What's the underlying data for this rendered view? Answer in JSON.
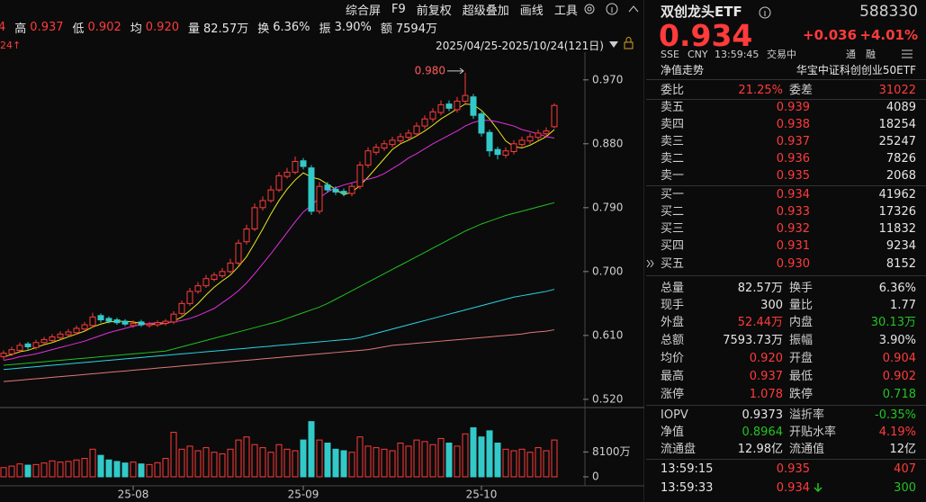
{
  "toolbar": [
    "综合屏",
    "F9",
    "前复权",
    "超级叠加",
    "画线",
    "工具"
  ],
  "info_bar": {
    "lead": "4",
    "items": [
      {
        "label": "高",
        "value": "0.937"
      },
      {
        "label": "低",
        "value": "0.902"
      },
      {
        "label": "均",
        "value": "0.920"
      },
      {
        "label": "量",
        "value": "82.57万"
      },
      {
        "label": "换",
        "value": "6.36%"
      },
      {
        "label": "振",
        "value": "3.90%"
      },
      {
        "label": "额",
        "value": "7594万"
      }
    ]
  },
  "period_badge": "24↑",
  "range": "2025/04/25-2025/10/24(121日)",
  "chart_data": [
    {
      "type": "candlestick",
      "up_color": "#ff3b3b",
      "down_color": "#33c9c9",
      "ylim": [
        0.511,
        1.009
      ],
      "yticks": [
        {
          "value": 0.97,
          "label": "0.970"
        },
        {
          "value": 0.88,
          "label": "0.880"
        },
        {
          "value": 0.79,
          "label": "0.790"
        },
        {
          "value": 0.7,
          "label": "0.700"
        },
        {
          "value": 0.61,
          "label": "0.610"
        },
        {
          "value": 0.52,
          "label": "0.520"
        }
      ],
      "annotation": "0.980",
      "open": [
        0.58,
        0.584,
        0.589,
        0.598,
        0.593,
        0.6,
        0.603,
        0.607,
        0.611,
        0.614,
        0.619,
        0.624,
        0.638,
        0.634,
        0.632,
        0.63,
        0.624,
        0.629,
        0.624,
        0.625,
        0.627,
        0.629,
        0.641,
        0.655,
        0.672,
        0.68,
        0.689,
        0.694,
        0.7,
        0.712,
        0.742,
        0.76,
        0.79,
        0.8,
        0.815,
        0.834,
        0.84,
        0.856,
        0.846,
        0.785,
        0.822,
        0.816,
        0.813,
        0.81,
        0.82,
        0.85,
        0.868,
        0.874,
        0.879,
        0.884,
        0.889,
        0.894,
        0.905,
        0.915,
        0.924,
        0.936,
        0.928,
        0.94,
        0.946,
        0.922,
        0.896,
        0.872,
        0.864,
        0.869,
        0.879,
        0.884,
        0.889,
        0.894,
        0.904
      ],
      "high": [
        0.589,
        0.594,
        0.6,
        0.601,
        0.604,
        0.608,
        0.612,
        0.616,
        0.619,
        0.624,
        0.629,
        0.642,
        0.641,
        0.637,
        0.635,
        0.633,
        0.631,
        0.632,
        0.629,
        0.631,
        0.633,
        0.644,
        0.659,
        0.677,
        0.685,
        0.695,
        0.699,
        0.705,
        0.718,
        0.745,
        0.766,
        0.796,
        0.806,
        0.821,
        0.84,
        0.846,
        0.862,
        0.86,
        0.85,
        0.826,
        0.826,
        0.82,
        0.817,
        0.824,
        0.855,
        0.875,
        0.88,
        0.885,
        0.89,
        0.895,
        0.9,
        0.91,
        0.92,
        0.93,
        0.941,
        0.941,
        0.946,
        0.98,
        0.95,
        0.925,
        0.9,
        0.876,
        0.875,
        0.885,
        0.89,
        0.895,
        0.9,
        0.903,
        0.937
      ],
      "low": [
        0.576,
        0.581,
        0.586,
        0.59,
        0.59,
        0.597,
        0.6,
        0.604,
        0.608,
        0.611,
        0.616,
        0.621,
        0.628,
        0.627,
        0.625,
        0.623,
        0.621,
        0.622,
        0.621,
        0.622,
        0.624,
        0.626,
        0.638,
        0.652,
        0.669,
        0.677,
        0.686,
        0.691,
        0.697,
        0.709,
        0.738,
        0.757,
        0.786,
        0.797,
        0.812,
        0.831,
        0.837,
        0.844,
        0.78,
        0.781,
        0.811,
        0.808,
        0.806,
        0.806,
        0.816,
        0.846,
        0.864,
        0.87,
        0.875,
        0.88,
        0.885,
        0.89,
        0.901,
        0.911,
        0.92,
        0.926,
        0.924,
        0.936,
        0.915,
        0.89,
        0.862,
        0.858,
        0.86,
        0.865,
        0.875,
        0.88,
        0.885,
        0.89,
        0.902
      ],
      "close": [
        0.585,
        0.59,
        0.596,
        0.594,
        0.6,
        0.604,
        0.608,
        0.612,
        0.615,
        0.62,
        0.625,
        0.636,
        0.632,
        0.63,
        0.628,
        0.626,
        0.627,
        0.625,
        0.626,
        0.628,
        0.63,
        0.64,
        0.655,
        0.672,
        0.68,
        0.69,
        0.695,
        0.7,
        0.712,
        0.74,
        0.76,
        0.79,
        0.8,
        0.815,
        0.835,
        0.84,
        0.855,
        0.848,
        0.785,
        0.82,
        0.815,
        0.812,
        0.81,
        0.82,
        0.85,
        0.87,
        0.875,
        0.88,
        0.885,
        0.89,
        0.895,
        0.905,
        0.915,
        0.925,
        0.935,
        0.93,
        0.94,
        0.948,
        0.92,
        0.895,
        0.87,
        0.865,
        0.87,
        0.88,
        0.885,
        0.89,
        0.895,
        0.898,
        0.934
      ],
      "series": [
        {
          "color": "#e8e820",
          "values": [
            0.58,
            0.583,
            0.587,
            0.589,
            0.593,
            0.597,
            0.6,
            0.604,
            0.608,
            0.612,
            0.616,
            0.622,
            0.626,
            0.629,
            0.63,
            0.63,
            0.629,
            0.627,
            0.626,
            0.626,
            0.627,
            0.63,
            0.636,
            0.645,
            0.655,
            0.667,
            0.678,
            0.687,
            0.695,
            0.707,
            0.721,
            0.74,
            0.76,
            0.781,
            0.8,
            0.816,
            0.829,
            0.839,
            0.833,
            0.83,
            0.823,
            0.816,
            0.808,
            0.812,
            0.821,
            0.833,
            0.846,
            0.859,
            0.872,
            0.88,
            0.885,
            0.891,
            0.898,
            0.906,
            0.915,
            0.922,
            0.929,
            0.936,
            0.935,
            0.927,
            0.915,
            0.9,
            0.884,
            0.876,
            0.874,
            0.878,
            0.884,
            0.89,
            0.9
          ]
        },
        {
          "color": "#e030e0",
          "values": [
            0.575,
            0.577,
            0.58,
            0.582,
            0.584,
            0.587,
            0.59,
            0.593,
            0.596,
            0.599,
            0.602,
            0.606,
            0.61,
            0.614,
            0.617,
            0.62,
            0.623,
            0.625,
            0.627,
            0.628,
            0.628,
            0.629,
            0.631,
            0.634,
            0.638,
            0.643,
            0.648,
            0.656,
            0.664,
            0.673,
            0.684,
            0.697,
            0.711,
            0.725,
            0.74,
            0.755,
            0.77,
            0.784,
            0.793,
            0.804,
            0.812,
            0.818,
            0.822,
            0.825,
            0.828,
            0.83,
            0.833,
            0.838,
            0.845,
            0.852,
            0.86,
            0.866,
            0.873,
            0.88,
            0.886,
            0.892,
            0.898,
            0.905,
            0.91,
            0.913,
            0.913,
            0.911,
            0.908,
            0.905,
            0.9,
            0.897,
            0.894,
            0.89,
            0.888
          ]
        },
        {
          "color": "#22c022",
          "values": [
            0.568,
            0.569,
            0.57,
            0.571,
            0.572,
            0.573,
            0.574,
            0.575,
            0.576,
            0.577,
            0.578,
            0.579,
            0.58,
            0.581,
            0.582,
            0.583,
            0.584,
            0.585,
            0.586,
            0.587,
            0.588,
            0.591,
            0.594,
            0.597,
            0.6,
            0.603,
            0.606,
            0.609,
            0.612,
            0.615,
            0.618,
            0.621,
            0.624,
            0.627,
            0.63,
            0.634,
            0.638,
            0.642,
            0.646,
            0.65,
            0.655,
            0.661,
            0.667,
            0.673,
            0.679,
            0.685,
            0.691,
            0.697,
            0.703,
            0.709,
            0.715,
            0.721,
            0.727,
            0.733,
            0.739,
            0.745,
            0.751,
            0.757,
            0.762,
            0.767,
            0.771,
            0.775,
            0.779,
            0.782,
            0.785,
            0.788,
            0.791,
            0.794,
            0.797
          ]
        },
        {
          "color": "#2ad4e6",
          "values": [
            0.562,
            0.563,
            0.564,
            0.565,
            0.566,
            0.567,
            0.568,
            0.569,
            0.57,
            0.571,
            0.572,
            0.573,
            0.574,
            0.575,
            0.576,
            0.577,
            0.578,
            0.579,
            0.58,
            0.581,
            0.582,
            0.583,
            0.584,
            0.585,
            0.586,
            0.587,
            0.588,
            0.589,
            0.59,
            0.591,
            0.592,
            0.593,
            0.594,
            0.595,
            0.596,
            0.597,
            0.598,
            0.599,
            0.6,
            0.601,
            0.602,
            0.603,
            0.604,
            0.605,
            0.607,
            0.61,
            0.613,
            0.616,
            0.619,
            0.622,
            0.625,
            0.628,
            0.631,
            0.634,
            0.637,
            0.64,
            0.643,
            0.646,
            0.649,
            0.652,
            0.655,
            0.658,
            0.661,
            0.664,
            0.666,
            0.668,
            0.67,
            0.672,
            0.675
          ]
        },
        {
          "color": "#e27878",
          "values": [
            0.545,
            0.546,
            0.547,
            0.548,
            0.549,
            0.55,
            0.551,
            0.552,
            0.553,
            0.554,
            0.555,
            0.556,
            0.557,
            0.558,
            0.559,
            0.56,
            0.561,
            0.562,
            0.563,
            0.564,
            0.565,
            0.566,
            0.567,
            0.568,
            0.569,
            0.57,
            0.571,
            0.572,
            0.573,
            0.574,
            0.575,
            0.576,
            0.577,
            0.578,
            0.579,
            0.58,
            0.581,
            0.582,
            0.583,
            0.584,
            0.585,
            0.586,
            0.587,
            0.588,
            0.589,
            0.59,
            0.592,
            0.594,
            0.596,
            0.597,
            0.598,
            0.599,
            0.6,
            0.601,
            0.602,
            0.603,
            0.604,
            0.605,
            0.606,
            0.607,
            0.608,
            0.609,
            0.61,
            0.611,
            0.612,
            0.614,
            0.615,
            0.616,
            0.618
          ]
        }
      ]
    },
    {
      "type": "bar",
      "ylim": [
        0,
        22000
      ],
      "yticks": [
        {
          "value": 8100,
          "label": "8100万"
        },
        0
      ],
      "categories": [
        null,
        null,
        null,
        null,
        null,
        null,
        null,
        null,
        null,
        null,
        null,
        null,
        null,
        null,
        null,
        null,
        "25-08",
        null,
        null,
        null,
        null,
        null,
        null,
        null,
        null,
        null,
        null,
        null,
        null,
        null,
        null,
        null,
        null,
        null,
        null,
        null,
        null,
        "25-09",
        null,
        null,
        null,
        null,
        null,
        null,
        null,
        null,
        null,
        null,
        null,
        null,
        null,
        null,
        null,
        null,
        null,
        null,
        null,
        null,
        null,
        "25-10",
        null,
        null,
        null,
        null,
        null,
        null,
        null,
        null,
        null
      ],
      "values": [
        3000,
        3500,
        4200,
        3800,
        4000,
        4500,
        5200,
        4800,
        5000,
        5500,
        6000,
        9000,
        7000,
        5500,
        5000,
        4500,
        4800,
        4200,
        4000,
        4600,
        6000,
        14500,
        9000,
        10000,
        8500,
        9500,
        8000,
        7500,
        9000,
        12000,
        13000,
        10500,
        9500,
        8000,
        10500,
        9000,
        8500,
        12000,
        18000,
        12000,
        11000,
        9000,
        8500,
        8000,
        13000,
        10000,
        9500,
        9000,
        8500,
        11000,
        10000,
        12000,
        11500,
        10500,
        12500,
        11000,
        10000,
        14000,
        16000,
        13000,
        15000,
        11000,
        9000,
        8500,
        9000,
        8000,
        9500,
        8500,
        12000
      ]
    }
  ],
  "quote": {
    "name": "双创龙头ETF",
    "code": "588330",
    "price": "0.934",
    "change": "+0.036",
    "change_pct": "+4.01%",
    "market": "SSE",
    "currency": "CNY",
    "time": "13:59:45",
    "status": "交易中",
    "badges": [
      "通",
      "融"
    ],
    "nav_trend": "净值走势",
    "index_name": "华宝中证科创创业50ETF"
  },
  "order_ratio": [
    "委比",
    "21.25%",
    "委差",
    "31022"
  ],
  "order_book": {
    "sell": [
      [
        "卖五",
        "0.939",
        "4089"
      ],
      [
        "卖四",
        "0.938",
        "18254"
      ],
      [
        "卖三",
        "0.937",
        "25247"
      ],
      [
        "卖二",
        "0.936",
        "7826"
      ],
      [
        "卖一",
        "0.935",
        "2068"
      ]
    ],
    "buy": [
      [
        "买一",
        "0.934",
        "41962"
      ],
      [
        "买二",
        "0.933",
        "17326"
      ],
      [
        "买三",
        "0.932",
        "11832"
      ],
      [
        "买四",
        "0.931",
        "9234"
      ],
      [
        "买五",
        "0.930",
        "8152"
      ]
    ]
  },
  "stats": [
    [
      "总量",
      "82.57万",
      "换手",
      "6.36%"
    ],
    [
      "现手",
      "300",
      "量比",
      "1.77"
    ],
    [
      "外盘",
      "52.44万",
      "内盘",
      "30.13万"
    ],
    [
      "总额",
      "7593.73万",
      "振幅",
      "3.90%"
    ],
    [
      "均价",
      "0.920",
      "开盘",
      "0.904"
    ],
    [
      "最高",
      "0.937",
      "最低",
      "0.902"
    ],
    [
      "涨停",
      "1.078",
      "跌停",
      "0.718"
    ]
  ],
  "fund": [
    [
      "IOPV",
      "0.9373",
      "溢折率",
      "-0.35%"
    ],
    [
      "净值",
      "0.8964",
      "开贴水率",
      "4.19%"
    ],
    [
      "流通盘",
      "12.98亿",
      "流通值",
      "12亿"
    ]
  ],
  "trades": [
    [
      "13:59:15",
      "0.935",
      "407"
    ],
    [
      "13:59:33",
      "0.934",
      "300"
    ]
  ]
}
